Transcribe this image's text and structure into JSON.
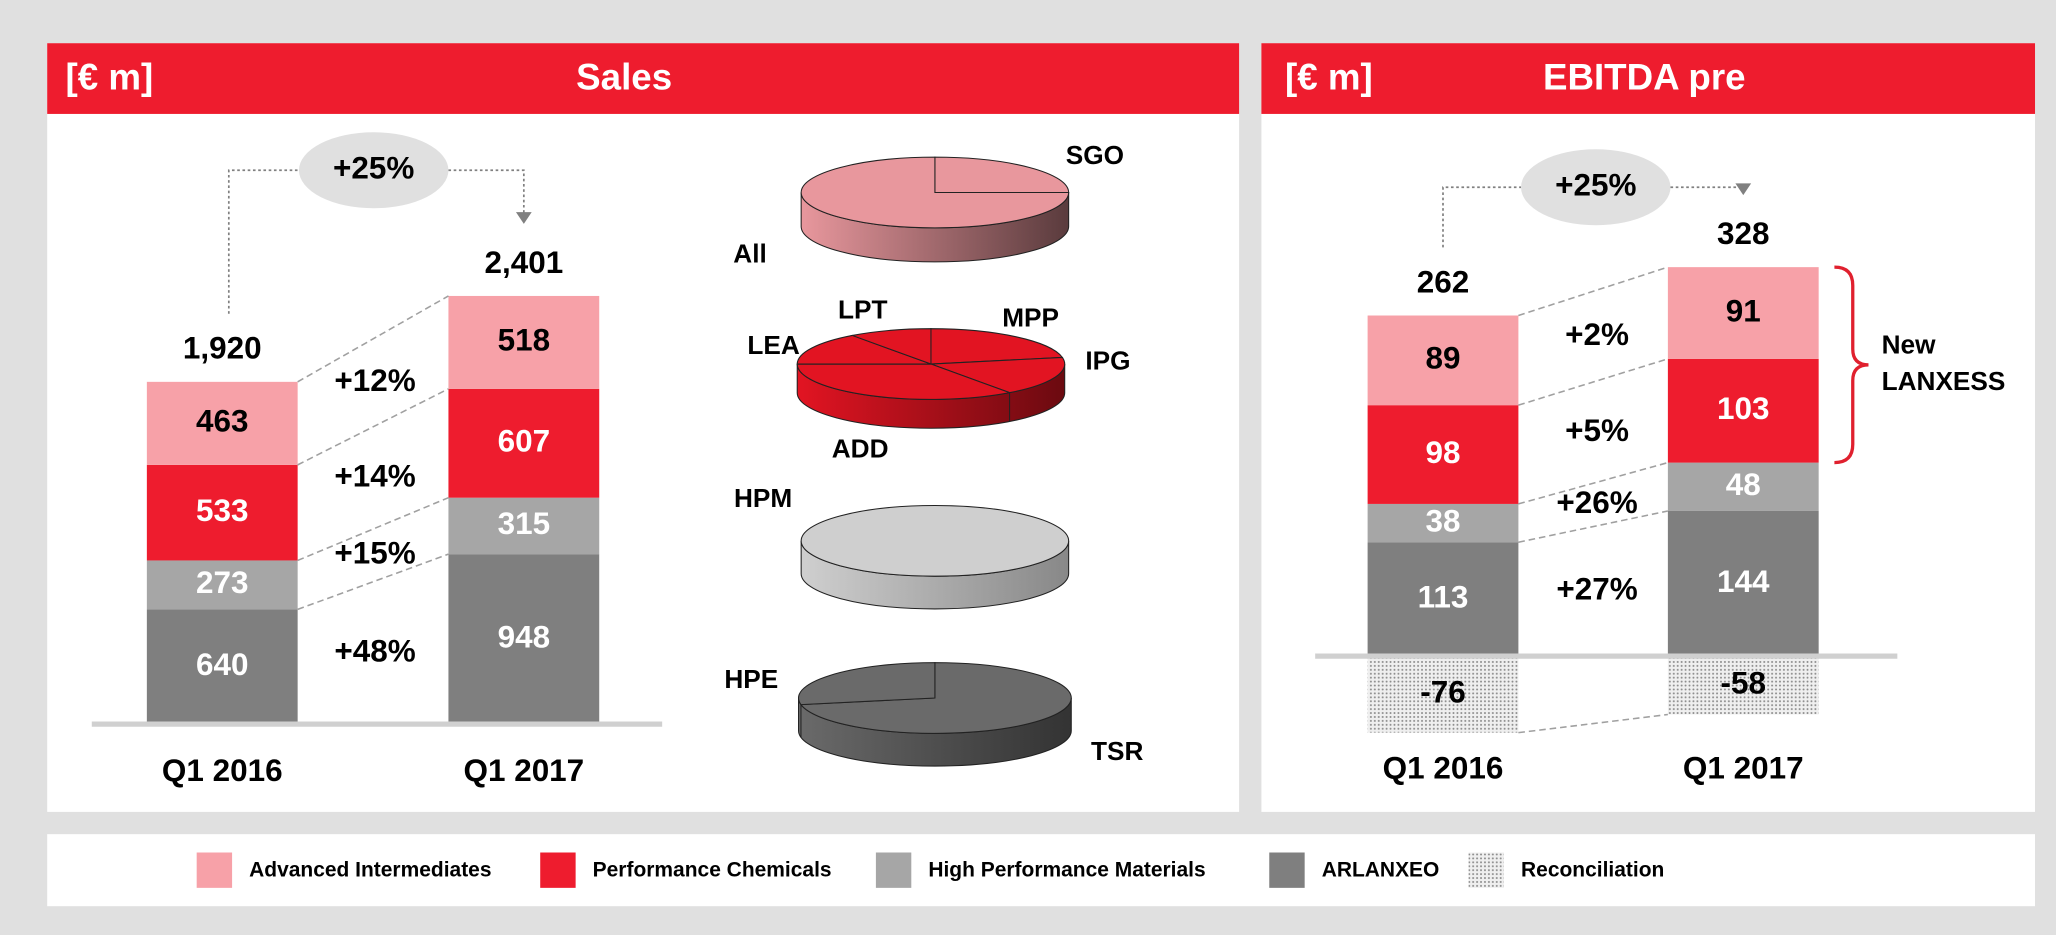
{
  "chart_data": [
    {
      "type": "bar",
      "stacked": true,
      "unit": "[€ m]",
      "title": "Sales",
      "categories": [
        "Q1 2016",
        "Q1 2017"
      ],
      "series": [
        {
          "color": "#f7a1a8",
          "label_color": "#000000",
          "change": "+12%",
          "values": [
            463,
            518
          ]
        },
        {
          "color": "#ee1c2e",
          "label_color": "#ffffff",
          "change": "+14%",
          "values": [
            533,
            607
          ]
        },
        {
          "color": "#a6a6a6",
          "label_color": "#ffffff",
          "change": "+15%",
          "values": [
            273,
            315
          ]
        },
        {
          "color": "#7f7f7f",
          "label_color": "#ffffff",
          "change": "+48%",
          "values": [
            640,
            948
          ]
        }
      ],
      "totals": [
        1920,
        2401
      ],
      "total_labels": [
        "1,920",
        "2,401"
      ],
      "total_change": "+25%"
    },
    {
      "type": "bar",
      "stacked": true,
      "unit": "[€ m]",
      "title": "EBITDA pre",
      "categories": [
        "Q1 2016",
        "Q1 2017"
      ],
      "series": [
        {
          "name": "Advanced Intermediates",
          "color": "#f7a1a8",
          "label_color": "#000000",
          "change": "+2%",
          "values": [
            89,
            91
          ]
        },
        {
          "name": "Performance Chemicals",
          "color": "#ee1c2e",
          "label_color": "#ffffff",
          "change": "+5%",
          "values": [
            98,
            103
          ]
        },
        {
          "name": "High Performance Materials",
          "color": "#a6a6a6",
          "label_color": "#ffffff",
          "change": "+26%",
          "values": [
            38,
            48
          ]
        },
        {
          "name": "ARLANXEO",
          "color": "#7f7f7f",
          "label_color": "#ffffff",
          "change": "+27%",
          "values": [
            113,
            144
          ]
        },
        {
          "name": "Reconciliation",
          "color": "#bbbbbb",
          "pattern": "dots",
          "label_color": "#000000",
          "values": [
            -76,
            -58
          ]
        }
      ],
      "totals": [
        262,
        328
      ],
      "total_change": "+25%",
      "annotation": [
        "New",
        "LANXESS"
      ]
    },
    {
      "type": "pie",
      "categories": [
        "SGO",
        "All"
      ],
      "values": [
        25,
        75
      ],
      "color": "#e8979d",
      "side_color": "#5a3b3d"
    },
    {
      "type": "pie",
      "categories": [
        "MPP",
        "IPG",
        "ADD",
        "LEA",
        "LPT"
      ],
      "values": [
        22,
        18,
        35,
        15,
        10
      ],
      "color": "#e21422",
      "side_color": "#6b0a10"
    },
    {
      "type": "pie",
      "categories": [
        "HPM"
      ],
      "values": [
        100
      ],
      "color": "#cfcfcf",
      "side_color": "#888888"
    },
    {
      "type": "pie",
      "categories": [
        "TSR",
        "HPE"
      ],
      "values": [
        72,
        28
      ],
      "color": "#6a6a6a",
      "side_color": "#333333"
    }
  ]
}
